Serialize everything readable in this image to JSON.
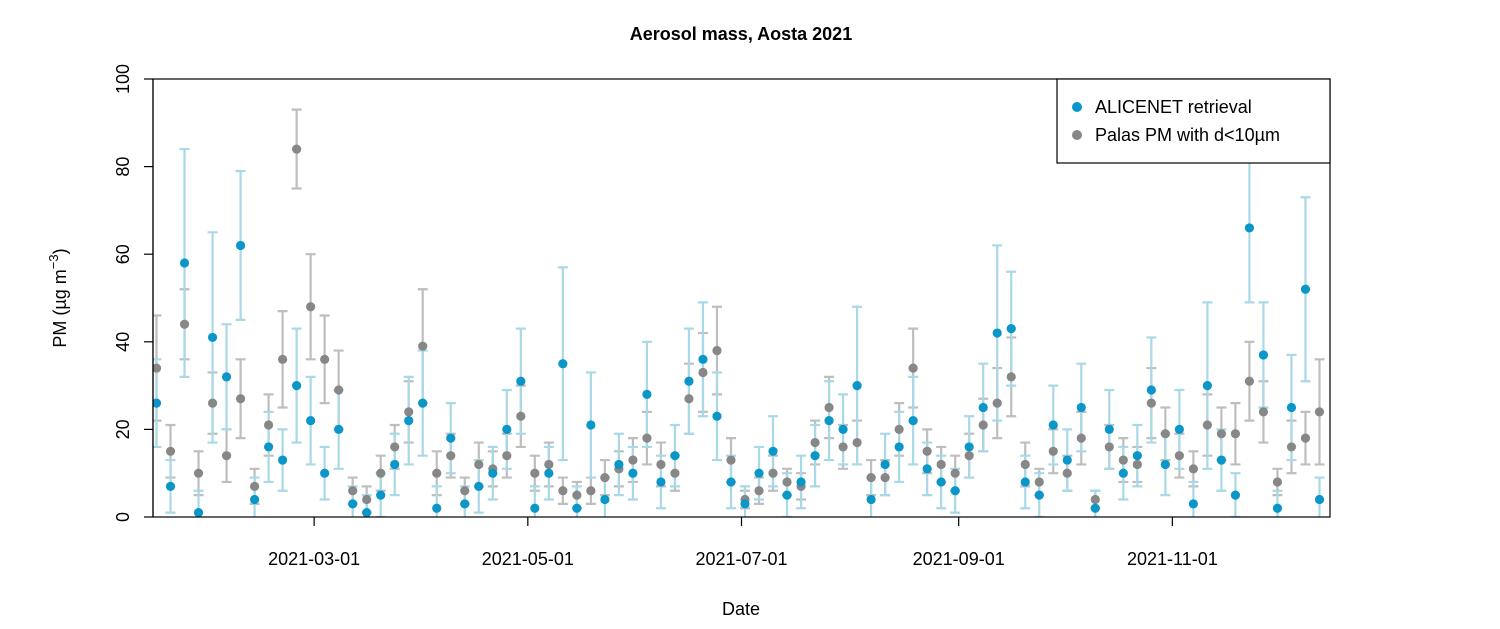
{
  "chart_data": {
    "type": "scatter",
    "title": "Aerosol mass, Aosta 2021",
    "xlabel": "Date",
    "ylabel": "PM (µg m",
    "ylabel_sup": "−3",
    "ylabel_end": ")",
    "xlim": [
      "2021-01-14",
      "2021-12-16"
    ],
    "xticks": [
      "2021-03-01",
      "2021-05-01",
      "2021-07-01",
      "2021-09-01",
      "2021-11-01"
    ],
    "ylim": [
      0,
      100
    ],
    "yticks": [
      0,
      20,
      40,
      60,
      80,
      100
    ],
    "legend": "top-right",
    "x": [
      "2021-01-15",
      "2021-01-19",
      "2021-01-23",
      "2021-01-27",
      "2021-01-31",
      "2021-02-04",
      "2021-02-08",
      "2021-02-12",
      "2021-02-16",
      "2021-02-20",
      "2021-02-24",
      "2021-02-28",
      "2021-03-04",
      "2021-03-08",
      "2021-03-12",
      "2021-03-16",
      "2021-03-20",
      "2021-03-24",
      "2021-03-28",
      "2021-04-01",
      "2021-04-05",
      "2021-04-09",
      "2021-04-13",
      "2021-04-17",
      "2021-04-21",
      "2021-04-25",
      "2021-04-29",
      "2021-05-03",
      "2021-05-07",
      "2021-05-11",
      "2021-05-15",
      "2021-05-19",
      "2021-05-23",
      "2021-05-27",
      "2021-05-31",
      "2021-06-04",
      "2021-06-08",
      "2021-06-12",
      "2021-06-16",
      "2021-06-20",
      "2021-06-24",
      "2021-06-28",
      "2021-07-02",
      "2021-07-06",
      "2021-07-10",
      "2021-07-14",
      "2021-07-18",
      "2021-07-22",
      "2021-07-26",
      "2021-07-30",
      "2021-08-03",
      "2021-08-07",
      "2021-08-11",
      "2021-08-15",
      "2021-08-19",
      "2021-08-23",
      "2021-08-27",
      "2021-08-31",
      "2021-09-04",
      "2021-09-08",
      "2021-09-12",
      "2021-09-16",
      "2021-09-20",
      "2021-09-24",
      "2021-09-28",
      "2021-10-02",
      "2021-10-06",
      "2021-10-10",
      "2021-10-14",
      "2021-10-18",
      "2021-10-22",
      "2021-10-26",
      "2021-10-30",
      "2021-11-03",
      "2021-11-07",
      "2021-11-11",
      "2021-11-15",
      "2021-11-19",
      "2021-11-23",
      "2021-11-27",
      "2021-12-01",
      "2021-12-05",
      "2021-12-09",
      "2021-12-13"
    ],
    "series": [
      {
        "name": "Palas PM with d<10µm",
        "color": "#878787",
        "error_color": "#bebebe",
        "values": [
          34,
          15,
          44,
          10,
          26,
          14,
          27,
          7,
          21,
          36,
          84,
          48,
          36,
          29,
          6,
          4,
          10,
          16,
          24,
          39,
          10,
          14,
          6,
          12,
          11,
          14,
          23,
          10,
          12,
          6,
          5,
          6,
          9,
          11,
          13,
          18,
          12,
          10,
          27,
          33,
          38,
          13,
          4,
          6,
          10,
          8,
          7,
          17,
          25,
          16,
          17,
          9,
          9,
          20,
          34,
          15,
          12,
          10,
          14,
          21,
          26,
          32,
          12,
          8,
          15,
          10,
          18,
          4,
          16,
          13,
          12,
          26,
          19,
          14,
          11,
          21,
          19,
          19,
          31,
          24,
          8,
          16,
          18,
          24
        ],
        "errors": [
          12,
          6,
          8,
          5,
          7,
          6,
          9,
          4,
          7,
          11,
          9,
          12,
          10,
          9,
          3,
          3,
          4,
          5,
          7,
          13,
          5,
          5,
          3,
          5,
          4,
          5,
          7,
          4,
          5,
          3,
          3,
          3,
          4,
          4,
          5,
          6,
          5,
          4,
          8,
          9,
          10,
          5,
          2,
          3,
          4,
          3,
          3,
          5,
          7,
          5,
          5,
          4,
          4,
          6,
          9,
          5,
          4,
          4,
          5,
          6,
          8,
          9,
          5,
          3,
          5,
          4,
          6,
          2,
          5,
          5,
          4,
          8,
          6,
          5,
          4,
          7,
          6,
          7,
          9,
          7,
          3,
          6,
          6,
          12
        ]
      },
      {
        "name": "ALICENET retrieval",
        "color": "#0b96c8",
        "error_color": "#a9d8e6",
        "values": [
          26,
          7,
          58,
          1,
          41,
          32,
          62,
          4,
          16,
          13,
          30,
          22,
          10,
          20,
          3,
          1,
          5,
          12,
          22,
          26,
          2,
          18,
          3,
          7,
          10,
          20,
          31,
          2,
          10,
          35,
          2,
          21,
          4,
          12,
          10,
          28,
          8,
          14,
          31,
          36,
          23,
          8,
          3,
          10,
          15,
          5,
          8,
          14,
          22,
          20,
          30,
          4,
          12,
          16,
          22,
          11,
          8,
          6,
          16,
          25,
          42,
          43,
          8,
          5,
          21,
          13,
          25,
          2,
          20,
          10,
          14,
          29,
          12,
          20,
          3,
          30,
          13,
          5,
          66,
          37,
          2,
          25,
          52,
          4
        ],
        "errors": [
          10,
          6,
          26,
          5,
          24,
          12,
          17,
          5,
          8,
          7,
          13,
          10,
          6,
          9,
          4,
          4,
          5,
          7,
          10,
          12,
          5,
          8,
          4,
          6,
          6,
          9,
          12,
          5,
          6,
          22,
          5,
          12,
          5,
          7,
          6,
          12,
          6,
          7,
          12,
          13,
          10,
          6,
          4,
          6,
          8,
          5,
          6,
          7,
          9,
          8,
          18,
          5,
          7,
          8,
          10,
          6,
          6,
          5,
          7,
          10,
          20,
          13,
          6,
          5,
          9,
          7,
          10,
          4,
          9,
          6,
          7,
          12,
          7,
          9,
          5,
          19,
          7,
          5,
          17,
          12,
          4,
          12,
          21,
          5
        ]
      }
    ]
  }
}
